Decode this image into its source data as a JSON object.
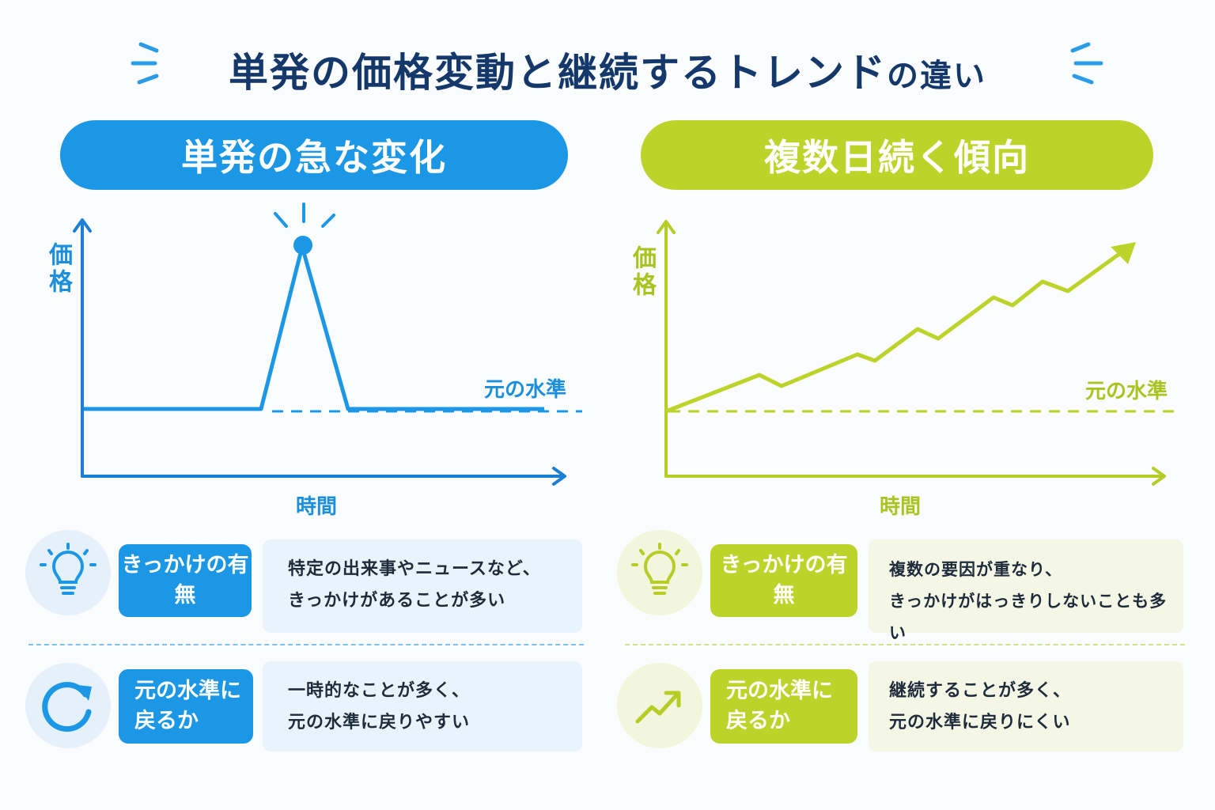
{
  "title": {
    "main": "単発の価格変動と継続するトレンド",
    "suffix": "の違い"
  },
  "left_panel": {
    "heading": "単発の急な変化",
    "color": "#1b97e5",
    "y_axis": "価格",
    "x_axis": "時間",
    "level_label": "元の水準",
    "rows": [
      {
        "icon": "lightbulb-icon",
        "tag": "きっかけの有無",
        "text": "特定の出来事やニュースなど、\nきっかけがあることが多い"
      },
      {
        "icon": "refresh-icon",
        "tag": "元の水準に\n戻るか",
        "text": "一時的なことが多く、\n元の水準に戻りやすい"
      }
    ]
  },
  "right_panel": {
    "heading": "複数日続く傾向",
    "color": "#bcd42a",
    "y_axis": "価格",
    "x_axis": "時間",
    "level_label": "元の水準",
    "rows": [
      {
        "icon": "lightbulb-icon",
        "tag": "きっかけの有無",
        "text": "複数の要因が重なり、\nきっかけがはっきりしないことも多い"
      },
      {
        "icon": "trend-up-icon",
        "tag": "元の水準に\n戻るか",
        "text": "継続することが多く、\n元の水準に戻りにくい"
      }
    ]
  }
}
